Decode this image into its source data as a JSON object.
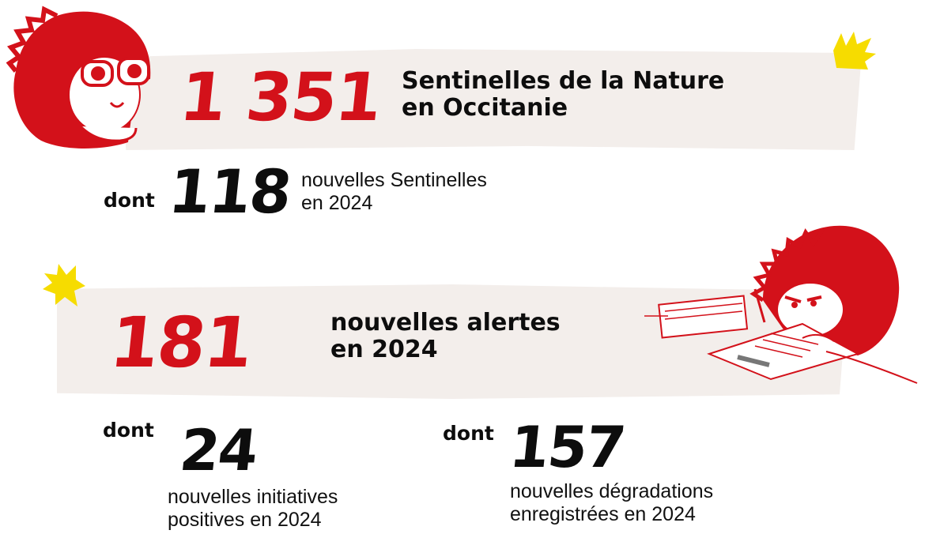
{
  "colors": {
    "accent_red": "#d3111a",
    "band": "#f3eeeb",
    "star_yellow": "#f6dc00",
    "text": "#0d0d0d"
  },
  "block1": {
    "number": "1 351",
    "title_line1": "Sentinelles de la Nature",
    "title_line2": "en Occitanie",
    "dont": "dont",
    "sub_number": "118",
    "desc_line1": "nouvelles Sentinelles",
    "desc_line2": "en 2024"
  },
  "block2": {
    "number": "181",
    "title_line1": "nouvelles alertes",
    "title_line2": "en 2024",
    "left": {
      "dont": "dont",
      "number": "24",
      "desc_line1": "nouvelles initiatives",
      "desc_line2": "positives en 2024"
    },
    "right": {
      "dont": "dont",
      "number": "157",
      "desc_line1": "nouvelles dégradations",
      "desc_line2": "enregistrées en 2024"
    }
  },
  "illustrations": [
    "hedgehog-binoculars-illustration",
    "hedgehog-writing-illustration",
    "yellow-burst-icon"
  ]
}
